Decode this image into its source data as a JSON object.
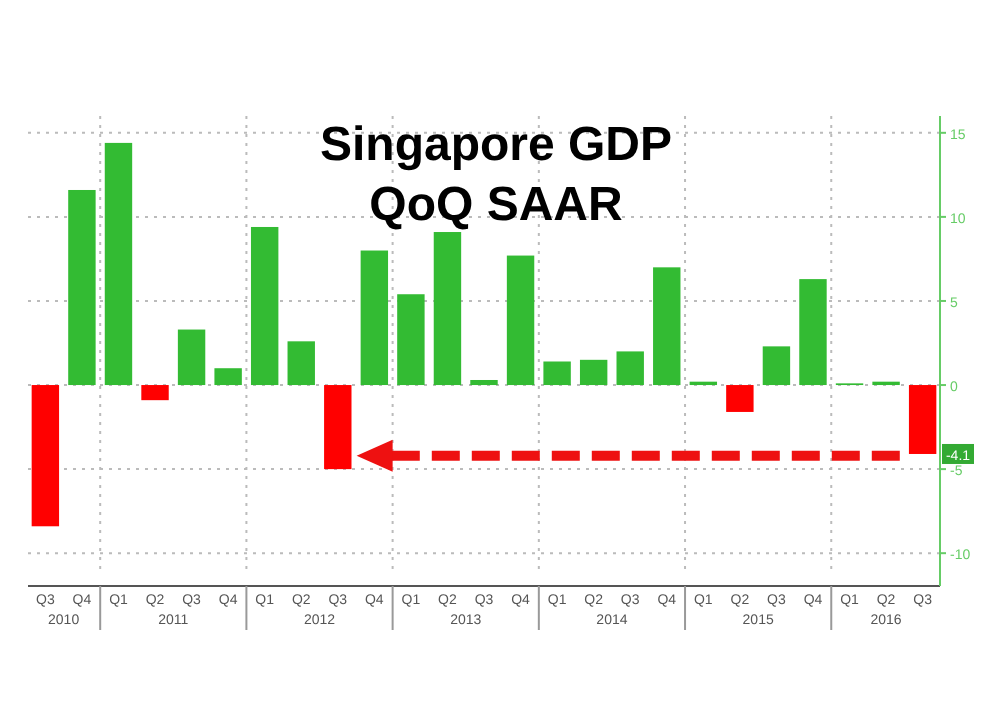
{
  "chart_data": {
    "type": "bar",
    "title": "Singapore GDP\nQoQ SAAR",
    "categories": [
      "Q3",
      "Q4",
      "Q1",
      "Q2",
      "Q3",
      "Q4",
      "Q1",
      "Q2",
      "Q3",
      "Q4",
      "Q1",
      "Q2",
      "Q3",
      "Q4",
      "Q1",
      "Q2",
      "Q3",
      "Q4",
      "Q1",
      "Q2",
      "Q3",
      "Q4",
      "Q1",
      "Q2",
      "Q3"
    ],
    "values": [
      -8.4,
      11.6,
      14.4,
      -0.9,
      3.3,
      1.0,
      9.4,
      2.6,
      -5.0,
      8.0,
      5.4,
      9.1,
      0.3,
      7.7,
      1.4,
      1.5,
      2.0,
      7.0,
      0.2,
      -1.6,
      2.3,
      6.3,
      0.1,
      0.2,
      -4.1
    ],
    "colors": [
      "#ff0000",
      "#33bb33",
      "#33bb33",
      "#ff0000",
      "#33bb33",
      "#33bb33",
      "#33bb33",
      "#33bb33",
      "#ff0000",
      "#33bb33",
      "#33bb33",
      "#33bb33",
      "#33bb33",
      "#33bb33",
      "#33bb33",
      "#33bb33",
      "#33bb33",
      "#33bb33",
      "#33bb33",
      "#ff0000",
      "#33bb33",
      "#33bb33",
      "#33bb33",
      "#33bb33",
      "#ff0000"
    ],
    "annotations": [
      "2010",
      "2011",
      "2012",
      "2013",
      "2014",
      "2015",
      "2016",
      {
        "text": "-4.1",
        "y": -4.1
      }
    ],
    "ylim": [
      -11,
      16
    ],
    "yticks": [
      15,
      10,
      5,
      0,
      -5,
      -10
    ],
    "grid": true
  }
}
